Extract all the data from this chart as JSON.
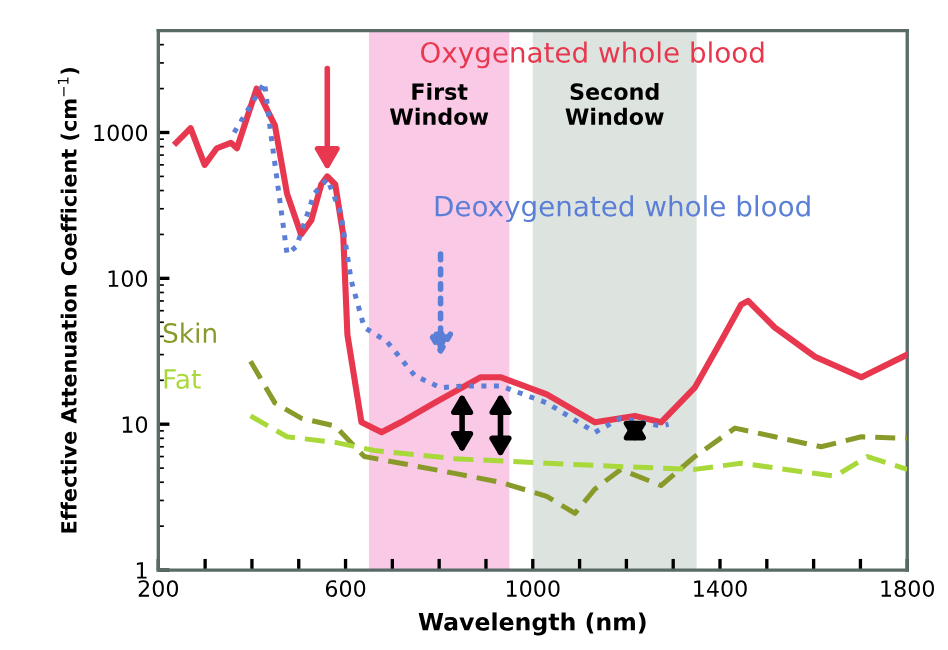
{
  "chart_data": {
    "type": "line",
    "xlabel": "Wavelength (nm)",
    "ylabel": "Effective Attenuation Coefficient (cm$^{−1}$)",
    "log": "y",
    "xlim": [
      200,
      1800
    ],
    "ylim": [
      1,
      5000
    ],
    "xticks": [
      200,
      {
        "value": 300,
        "label": null
      },
      {
        "value": 400,
        "label": null
      },
      {
        "value": 500,
        "label": null
      },
      600,
      {
        "value": 700,
        "label": null
      },
      {
        "value": 800,
        "label": null
      },
      {
        "value": 900,
        "label": null
      },
      1000,
      {
        "value": 1100,
        "label": null
      },
      {
        "value": 1200,
        "label": null
      },
      {
        "value": 1300,
        "label": null
      },
      1400,
      {
        "value": 1500,
        "label": null
      },
      {
        "value": 1600,
        "label": null
      },
      {
        "value": 1700,
        "label": null
      },
      1800
    ],
    "yticks": [
      1,
      10,
      100,
      1000
    ],
    "grid": false,
    "legend": false,
    "bands": [
      {
        "axis": "x",
        "from": 650,
        "to": 950,
        "label": "First\nWindow",
        "color": "#f9c9e6"
      },
      {
        "axis": "x",
        "from": 1000,
        "to": 1350,
        "label": "Second\nWindow",
        "color": "#dde3df"
      }
    ],
    "series": [
      {
        "name": "Oxygenated whole blood",
        "color": "#e8384f",
        "line_style": "solid",
        "x": [
          238,
          269,
          299,
          325,
          355,
          368,
          410,
          449,
          475,
          505,
          527,
          548,
          561,
          578,
          595,
          604,
          634,
          677,
          718,
          790,
          889,
          931,
          1030,
          1133,
          1218,
          1274,
          1346,
          1402,
          1445,
          1460,
          1517,
          1603,
          1702,
          1800
        ],
        "values": [
          850,
          1070,
          600,
          780,
          850,
          780,
          2000,
          1120,
          380,
          200,
          250,
          440,
          500,
          440,
          200,
          41,
          10.3,
          8.8,
          10.3,
          14,
          21,
          21,
          16,
          10.3,
          11.4,
          10.3,
          17.8,
          37,
          66,
          70,
          46,
          29,
          21,
          30
        ]
      },
      {
        "name": "Deoxygenated whole blood",
        "color": "#5b7fd6",
        "line_style": "dotted",
        "x": [
          362,
          427,
          440,
          475,
          495,
          533,
          561,
          590,
          612,
          640,
          688,
          748,
          803,
          859,
          931,
          1030,
          1133,
          1188,
          1274,
          1290
        ],
        "values": [
          1000,
          2200,
          1000,
          147,
          165,
          380,
          480,
          280,
          97,
          46,
          37,
          21.5,
          17.8,
          18.3,
          18.3,
          14,
          8.8,
          11,
          9.7,
          10
        ]
      },
      {
        "name": "Skin",
        "color": "#8a9a2a",
        "line_style": "dashed",
        "x": [
          397,
          449,
          505,
          578,
          640,
          718,
          833,
          931,
          1030,
          1090,
          1133,
          1188,
          1274,
          1346,
          1432,
          1517,
          1616,
          1702,
          1800
        ],
        "values": [
          27,
          14,
          11,
          9.7,
          6,
          5.4,
          4.6,
          4,
          3.2,
          2.45,
          3.6,
          4.9,
          3.8,
          6,
          9.4,
          8.2,
          7,
          8.2,
          8
        ]
      },
      {
        "name": "Fat",
        "color": "#a8d83a",
        "line_style": "dashed",
        "x": [
          397,
          475,
          578,
          662,
          833,
          1030,
          1201,
          1346,
          1445,
          1646,
          1715,
          1800
        ],
        "values": [
          11.4,
          8.2,
          7.5,
          6.6,
          5.8,
          5.4,
          5.1,
          4.9,
          5.4,
          4.4,
          6,
          4.9
        ]
      }
    ]
  }
}
